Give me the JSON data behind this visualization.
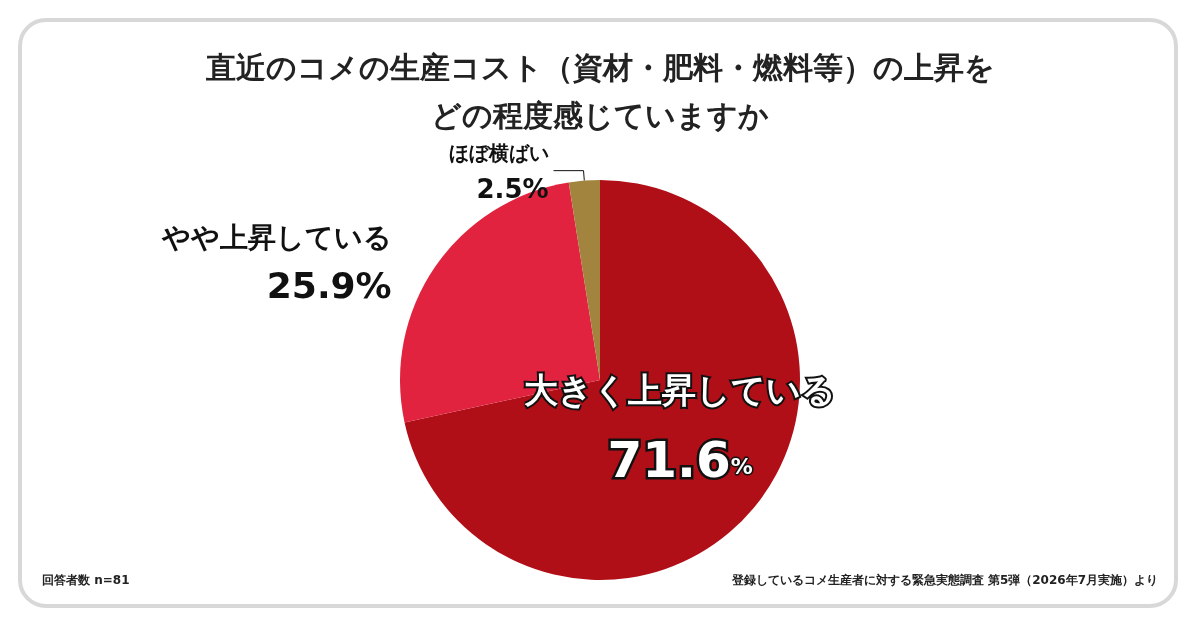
{
  "chart_data": {
    "type": "pie",
    "title": "直近のコメの生産コスト（資材・肥料・燃料等）の上昇をどの程度感じていますか",
    "categories": [
      "大きく上昇している",
      "やや上昇している",
      "ほぼ横ばい"
    ],
    "values": [
      71.6,
      25.9,
      2.5
    ],
    "colors": [
      "#b00f17",
      "#e1233f",
      "#a2843f"
    ],
    "value_labels": [
      "71.6%",
      "25.9%",
      "2.5%"
    ],
    "legend": false,
    "annotations": [
      "回答者数 n=81",
      "登録しているコメ生産者に対する緊急実態調査 第5弾（2026年7月実施）より"
    ]
  }
}
